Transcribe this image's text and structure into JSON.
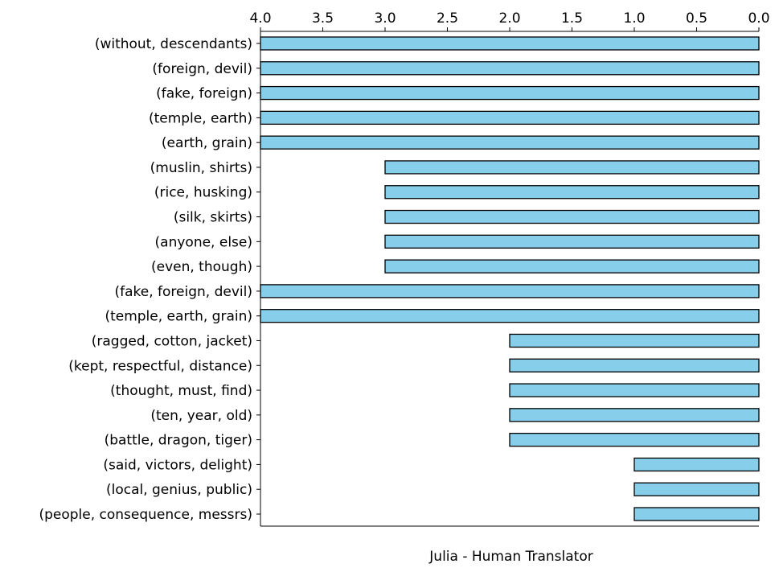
{
  "chart_data": {
    "type": "bar",
    "orientation": "horizontal",
    "x_axis_inverted": true,
    "x_axis_position": "top",
    "categories": [
      "(without, descendants)",
      "(foreign, devil)",
      "(fake, foreign)",
      "(temple, earth)",
      "(earth, grain)",
      "(muslin, shirts)",
      "(rice, husking)",
      "(silk, skirts)",
      "(anyone, else)",
      "(even, though)",
      "(fake, foreign, devil)",
      "(temple, earth, grain)",
      "(ragged, cotton, jacket)",
      "(kept, respectful, distance)",
      "(thought, must, find)",
      "(ten, year, old)",
      "(battle, dragon, tiger)",
      "(said, victors, delight)",
      "(local, genius, public)",
      "(people, consequence, messrs)"
    ],
    "values": [
      4,
      4,
      4,
      4,
      4,
      3,
      3,
      3,
      3,
      3,
      4,
      4,
      2,
      2,
      2,
      2,
      2,
      1,
      1,
      1
    ],
    "xlim": [
      4.0,
      0.0
    ],
    "xticks": [
      "4.0",
      "3.5",
      "3.0",
      "2.5",
      "2.0",
      "1.5",
      "1.0",
      "0.5",
      "0.0"
    ],
    "xtick_values": [
      4.0,
      3.5,
      3.0,
      2.5,
      2.0,
      1.5,
      1.0,
      0.5,
      0.0
    ],
    "title": "",
    "xlabel": "Julia - Human Translator",
    "ylabel": "",
    "bar_color": "#87CEEB",
    "edge_color": "#000000",
    "grid": false,
    "legend": "none"
  }
}
